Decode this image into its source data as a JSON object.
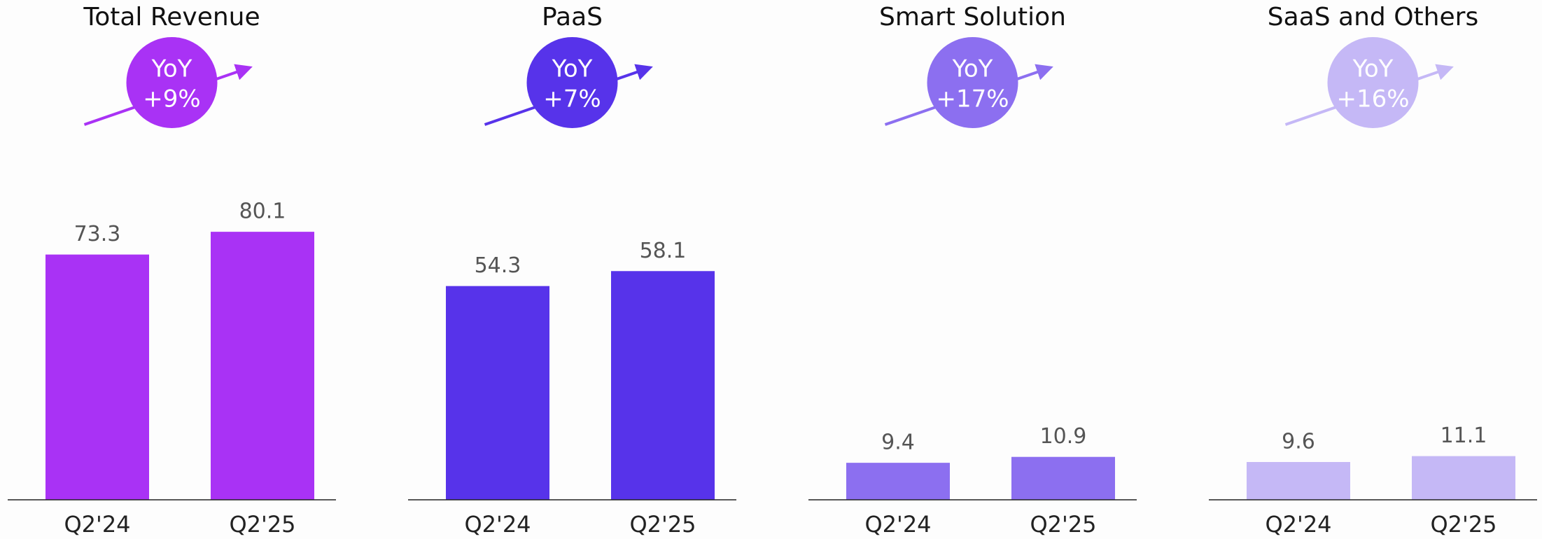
{
  "chart_data": [
    {
      "type": "bar",
      "title": "Total Revenue",
      "badge": {
        "label": "YoY",
        "change": "+9%"
      },
      "categories": [
        "Q2'24",
        "Q2'25"
      ],
      "values": [
        73.3,
        80.1
      ],
      "color": "#a932f5",
      "ylim": [
        0,
        100
      ]
    },
    {
      "type": "bar",
      "title": "PaaS",
      "badge": {
        "label": "YoY",
        "change": "+7%"
      },
      "categories": [
        "Q2'24",
        "Q2'25"
      ],
      "values": [
        54.3,
        58.1
      ],
      "color": "#5733ea",
      "ylim": [
        0,
        85
      ]
    },
    {
      "type": "bar",
      "title": "Smart Solution",
      "badge": {
        "label": "YoY",
        "change": "+17%"
      },
      "categories": [
        "Q2'24",
        "Q2'25"
      ],
      "values": [
        9.4,
        10.9
      ],
      "color": "#8c6ff0",
      "ylim": [
        0,
        85
      ]
    },
    {
      "type": "bar",
      "title": "SaaS and Others",
      "badge": {
        "label": "YoY",
        "change": "+16%"
      },
      "categories": [
        "Q2'24",
        "Q2'25"
      ],
      "values": [
        9.6,
        11.1
      ],
      "color": "#c5b8f6",
      "ylim": [
        0,
        85
      ]
    }
  ]
}
